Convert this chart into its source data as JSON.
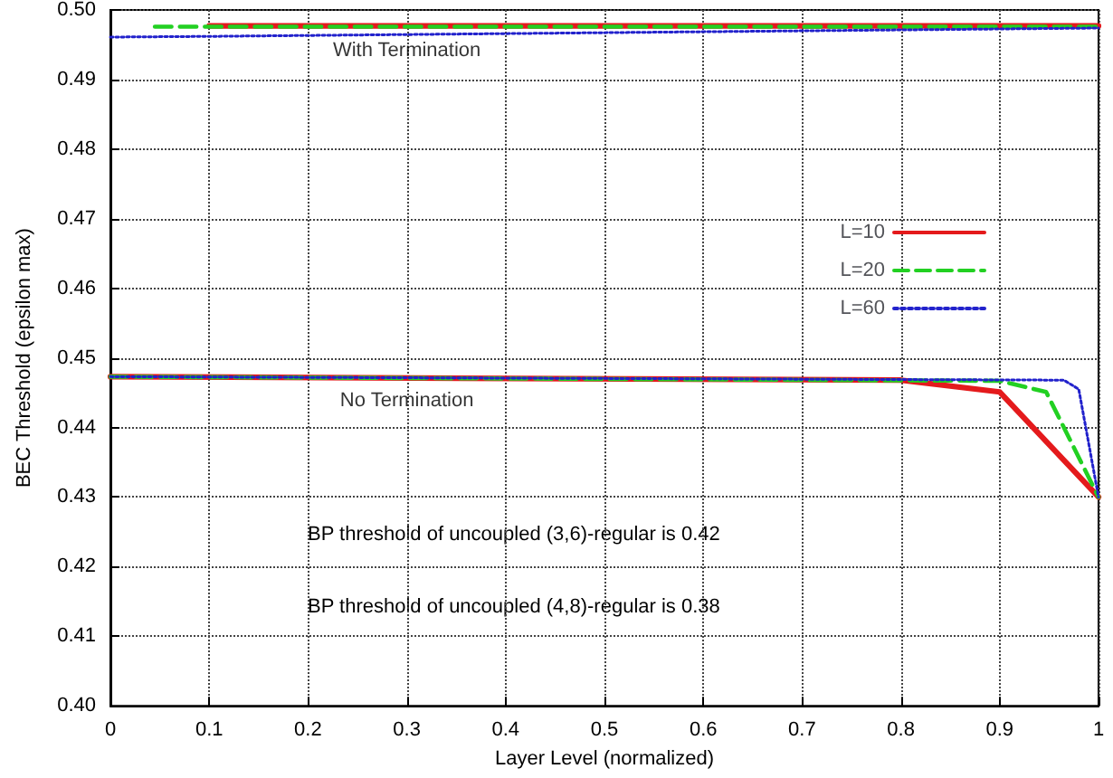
{
  "chart_data": {
    "type": "line",
    "xlabel": "Layer Level (normalized)",
    "ylabel": "BEC Threshold (epsilon max)",
    "xlim": [
      0,
      1
    ],
    "xticks": [
      0,
      0.1,
      0.2,
      0.3,
      0.4,
      0.5,
      0.6,
      0.7,
      0.8,
      0.9,
      1
    ],
    "ylim": [
      0.4,
      0.5
    ],
    "yticks": [
      {
        "value": 0.4,
        "label": "0.40"
      },
      0.41,
      0.42,
      0.43,
      0.44,
      0.45,
      0.46,
      0.47,
      0.48,
      0.49,
      {
        "value": 0.5,
        "label": "0.50"
      }
    ],
    "grid": true,
    "legend": "top right",
    "marker": "none",
    "series": [
      {
        "name": "L=10",
        "color": "#e41a1c",
        "line_style": "solid",
        "x": [
          0.1,
          1,
          null,
          0,
          0.8,
          0.9,
          1
        ],
        "values": [
          0.4977,
          0.4977,
          null,
          0.4473,
          0.4468,
          0.4451,
          0.43
        ]
      },
      {
        "name": "L=20",
        "color": "#22d022",
        "line_style": "dashed",
        "x": [
          0.045,
          1,
          null,
          0,
          0.9,
          0.947,
          1
        ],
        "values": [
          0.4976,
          0.4976,
          null,
          0.4473,
          0.4467,
          0.4451,
          0.43
        ]
      },
      {
        "name": "L=60",
        "color": "#2222cc",
        "line_style": "dotted",
        "x": [
          0,
          0.1,
          1,
          null,
          0,
          0.965,
          0.98,
          1
        ],
        "values": [
          0.4961,
          0.4962,
          0.4974,
          null,
          0.4473,
          0.4468,
          0.4455,
          0.43
        ]
      }
    ],
    "annotations": [
      {
        "text": "With Termination",
        "x": 0.3,
        "y": 0.4977
      },
      {
        "text": "No Termination",
        "x": 0.3,
        "y": 0.4473
      },
      "BP threshold of uncoupled (3,6)-regular is 0.42",
      "BP threshold of uncoupled (4,8)-regular is 0.38"
    ]
  }
}
